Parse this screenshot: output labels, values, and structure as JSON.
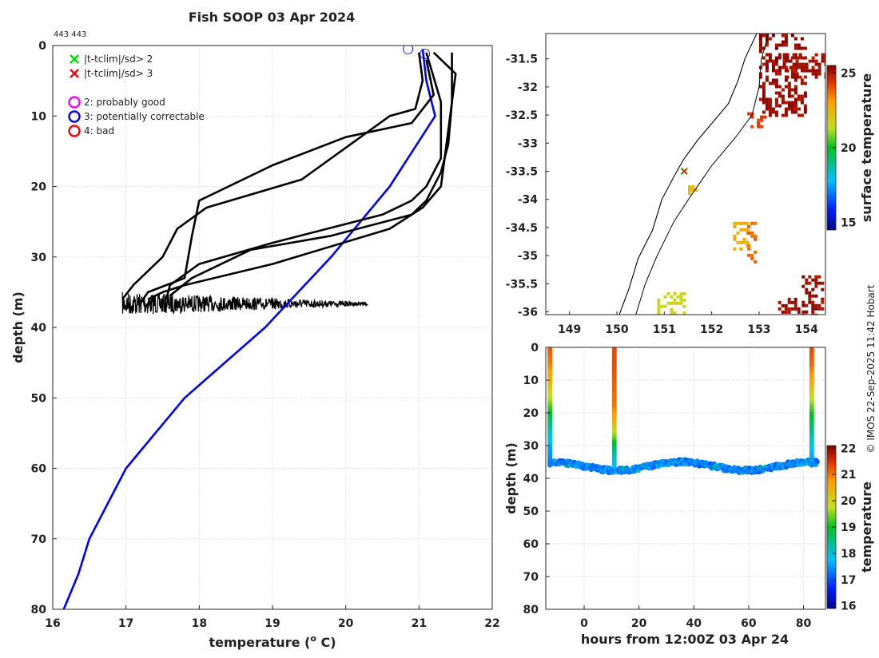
{
  "colors": {
    "climatology": "#0000ff",
    "profile": "#000000",
    "flag_2": "#ff00ff",
    "flag_3": "#0000ff",
    "flag_4": "#ff0000",
    "x_green": "#00dd00",
    "x_red": "#ff0000",
    "coast": "#000000"
  },
  "chart_data": [
    {
      "type": "line",
      "title": "Fish SOOP 03 Apr 2024",
      "id_label": "443 443",
      "xlabel": "temperature (",
      "xlabel_sup": "o",
      "xlabel_end": " C)",
      "ylabel": "depth (m)",
      "xlim": [
        16,
        22
      ],
      "ylim": [
        80,
        0
      ],
      "x_ticks": [
        "16",
        "17",
        "18",
        "19",
        "20",
        "21",
        "22"
      ],
      "y_ticks": [
        "0",
        "10",
        "20",
        "30",
        "40",
        "50",
        "60",
        "70",
        "80"
      ],
      "legend": [
        {
          "label": "|t-tclim|/sd> 2",
          "marker": "x",
          "color": "green"
        },
        {
          "label": "|t-tclim|/sd> 3",
          "marker": "x",
          "color": "red"
        },
        {
          "label": "2: probably good",
          "marker": "o",
          "color": "magenta"
        },
        {
          "label": "3: potentially correctable",
          "marker": "o",
          "color": "blue"
        },
        {
          "label": "4: bad",
          "marker": "o",
          "color": "red"
        }
      ],
      "series": [
        {
          "name": "climatology",
          "x": [
            21.05,
            21.1,
            21.22,
            20.6,
            19.8,
            18.9,
            17.8,
            17.0,
            16.5,
            16.35,
            16.15
          ],
          "y": [
            0.5,
            5,
            10,
            20,
            30,
            40,
            50,
            60,
            70,
            75,
            80
          ]
        },
        {
          "name": "profile-1",
          "x": [
            21.0,
            21.05,
            20.95,
            20.6,
            19.4,
            18.1,
            17.7,
            17.5,
            17.1,
            16.95
          ],
          "y": [
            1,
            5,
            9,
            10,
            19,
            23,
            26,
            30,
            34,
            36
          ]
        },
        {
          "name": "profile-2",
          "x": [
            21.1,
            21.2,
            20.9,
            20.0,
            19.0,
            18.0,
            17.9,
            17.8,
            17.3,
            17.2
          ],
          "y": [
            2,
            7,
            11,
            13,
            17,
            22,
            27,
            33,
            35,
            36.5
          ]
        },
        {
          "name": "profile-3",
          "x": [
            21.1,
            21.3,
            21.3,
            21.1,
            20.9,
            20.5,
            19.0,
            18.0,
            17.6,
            17.55
          ],
          "y": [
            1,
            8,
            16,
            20,
            22,
            24,
            28,
            31,
            34,
            36
          ]
        },
        {
          "name": "profile-4",
          "x": [
            21.2,
            21.5,
            21.4,
            21.3,
            21.05,
            20.6,
            19.0,
            17.8,
            17.5,
            17.3
          ],
          "y": [
            1,
            4,
            12,
            20,
            23,
            26,
            31,
            34,
            35,
            36
          ]
        },
        {
          "name": "profile-5",
          "x": [
            21.45,
            21.45,
            21.4,
            21.3,
            21.1,
            20.9,
            19.8,
            18.7,
            17.9,
            17.6
          ],
          "y": [
            1,
            8,
            14,
            18,
            22,
            24,
            27,
            29,
            33,
            35.5
          ]
        }
      ],
      "bottom_noise": {
        "x_range": [
          16.95,
          20.3
        ],
        "depth_range": [
          35.3,
          38.0
        ]
      },
      "flag_markers": [
        {
          "code": 3,
          "x": 20.85,
          "y": 0.5
        },
        {
          "code": 3,
          "x": 21.08,
          "y": 1.2
        }
      ]
    },
    {
      "type": "heatmap",
      "name": "surface temperature map",
      "x_ticks": [
        "149",
        "150",
        "151",
        "152",
        "153",
        "154"
      ],
      "y_ticks": [
        "-31.5",
        "-32",
        "-32.5",
        "-33",
        "-33.5",
        "-34",
        "-34.5",
        "-35",
        "-35.5",
        "-36"
      ],
      "xlim": [
        148.5,
        154.4
      ],
      "ylim": [
        -36.05,
        -31.05
      ],
      "colorbar": {
        "label": "surface temperature",
        "range": [
          14.5,
          25.5
        ],
        "ticks": [
          "15",
          "20",
          "25"
        ]
      },
      "patches": [
        {
          "lon": [
            153.0,
            154.0
          ],
          "lat": [
            -32.5,
            -31.0
          ],
          "value": 25.5
        },
        {
          "lon": [
            153.5,
            154.4
          ],
          "lat": [
            -31.8,
            -31.4
          ],
          "value": 25.4
        },
        {
          "lon": [
            152.75,
            153.1
          ],
          "lat": [
            -32.7,
            -32.45
          ],
          "value": 24.5
        },
        {
          "lon": [
            151.5,
            151.7
          ],
          "lat": [
            -33.9,
            -33.75
          ],
          "value": 22.5
        },
        {
          "lon": [
            152.45,
            152.75
          ],
          "lat": [
            -34.9,
            -34.4
          ],
          "value": 23.0
        },
        {
          "lon": [
            152.75,
            152.9
          ],
          "lat": [
            -35.1,
            -34.4
          ],
          "value": 24.0
        },
        {
          "lon": [
            150.85,
            151.45
          ],
          "lat": [
            -36.05,
            -35.65
          ],
          "value": 22.0
        },
        {
          "lon": [
            153.9,
            154.35
          ],
          "lat": [
            -36.05,
            -35.35
          ],
          "value": 25.5
        },
        {
          "lon": [
            153.4,
            153.85
          ],
          "lat": [
            -36.0,
            -35.75
          ],
          "value": 25.5
        }
      ],
      "track_point": {
        "lon": 151.42,
        "lat": -33.5
      }
    },
    {
      "type": "scatter",
      "name": "depth vs time",
      "xlabel": "hours from 12:00Z 03 Apr 24",
      "ylabel": "depth (m)",
      "xlim": [
        -14,
        88
      ],
      "ylim": [
        80,
        0
      ],
      "x_ticks": [
        "0",
        "20",
        "40",
        "60",
        "80"
      ],
      "y_ticks": [
        "0",
        "10",
        "20",
        "30",
        "40",
        "50",
        "60",
        "70",
        "80"
      ],
      "colorbar": {
        "label": "temperature",
        "range": [
          15.9,
          22.1
        ],
        "ticks": [
          "16",
          "17",
          "18",
          "19",
          "20",
          "21",
          "22"
        ]
      },
      "columns": [
        {
          "hour": -12.5,
          "temps_top_to_bottom": [
            21.2,
            21.0,
            20.6,
            20.0,
            19.3,
            18.6,
            18.0,
            17.5,
            17.3
          ]
        },
        {
          "hour": 11.0,
          "temps_top_to_bottom": [
            21.3,
            21.3,
            21.2,
            21.1,
            21.0,
            20.5,
            19.5,
            18.5,
            17.8
          ]
        },
        {
          "hour": 83.0,
          "temps_top_to_bottom": [
            21.3,
            21.1,
            20.6,
            19.8,
            19.0,
            18.4,
            17.8,
            17.4
          ]
        }
      ],
      "bottom_track": {
        "hour_range": [
          -12,
          85
        ],
        "mean_depth": 36.3,
        "amplitude": 1.3,
        "temp_base": 17.0
      }
    }
  ],
  "side_text": "© IMOS 22-Sep-2025 11:42 Hobart"
}
